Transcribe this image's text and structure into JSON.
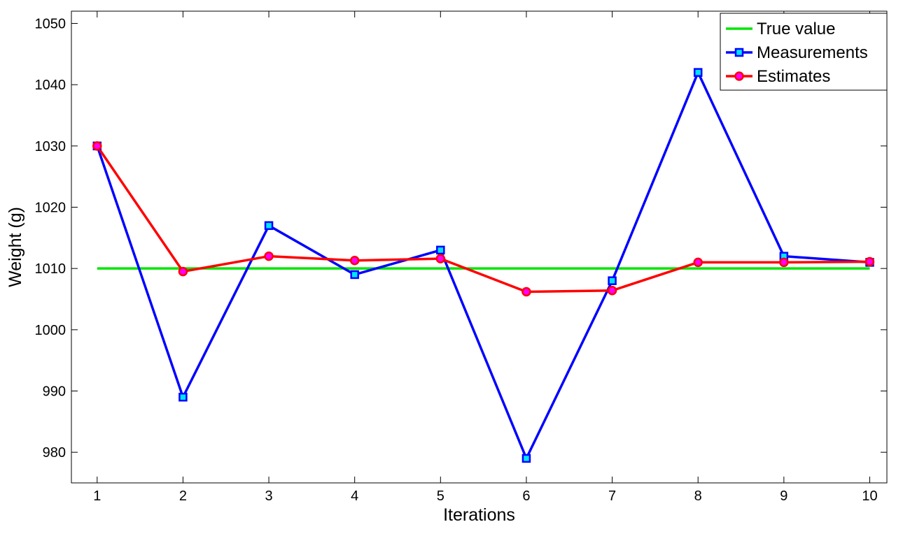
{
  "chart_data": {
    "type": "line",
    "xlabel": "Iterations",
    "ylabel": "Weight (g)",
    "x": [
      1,
      2,
      3,
      4,
      5,
      6,
      7,
      8,
      9,
      10
    ],
    "xlim": [
      0.7,
      10.2
    ],
    "ylim": [
      975,
      1052
    ],
    "yticks": [
      980,
      990,
      1000,
      1010,
      1020,
      1030,
      1040,
      1050
    ],
    "xticks": [
      1,
      2,
      3,
      4,
      5,
      6,
      7,
      8,
      9,
      10
    ],
    "grid": false,
    "legend_position": "top-right",
    "series": [
      {
        "name": "True value",
        "color": "#00e600",
        "marker": "none",
        "values": [
          1010,
          1010,
          1010,
          1010,
          1010,
          1010,
          1010,
          1010,
          1010,
          1010
        ]
      },
      {
        "name": "Measurements",
        "color": "#0000ff",
        "marker": "square",
        "marker_fill": "#00e5ff",
        "values": [
          1030,
          989,
          1017,
          1009,
          1013,
          979,
          1008,
          1042,
          1012,
          1011
        ]
      },
      {
        "name": "Estimates",
        "color": "#ff0000",
        "marker": "circle",
        "marker_fill": "#ff00ff",
        "values": [
          1030,
          1009.5,
          1012,
          1011.3,
          1011.6,
          1006.2,
          1006.4,
          1011,
          1011,
          1011.1
        ]
      }
    ]
  }
}
